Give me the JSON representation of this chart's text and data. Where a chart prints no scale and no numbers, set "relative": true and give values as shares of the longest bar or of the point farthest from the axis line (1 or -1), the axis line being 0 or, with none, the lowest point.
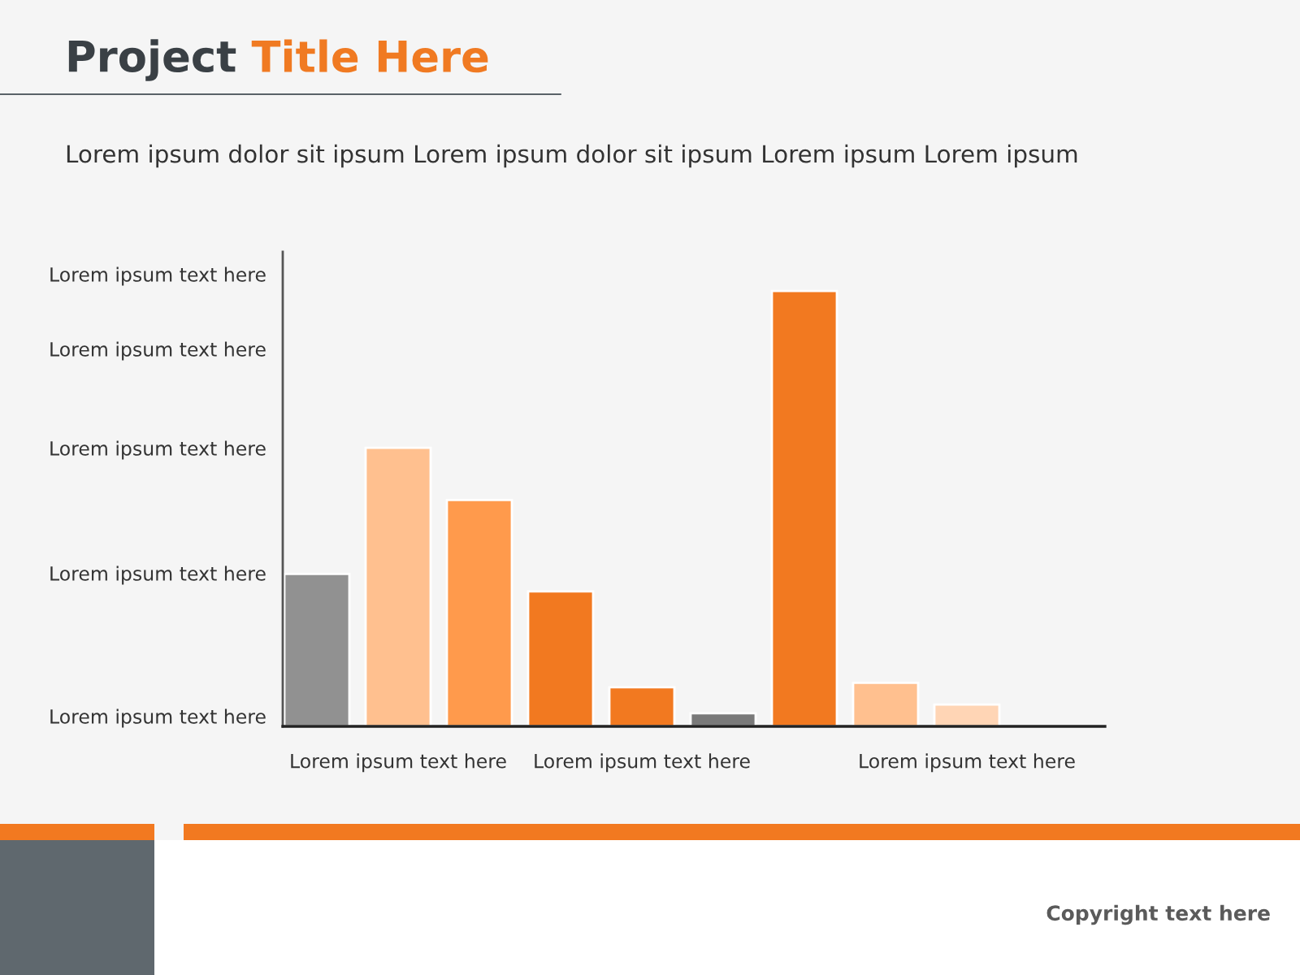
{
  "chart_data": {
    "type": "bar",
    "title": "Project Title Here",
    "subtitle": "Lorem ipsum dolor sit ipsum Lorem ipsum dolor sit ipsum Lorem ipsum Lorem ipsum",
    "categories": [
      null,
      "Lorem ipsum text here",
      null,
      null,
      "Lorem ipsum text here",
      null,
      null,
      null,
      "Lorem ipsum text here"
    ],
    "values": [
      0.35,
      0.64,
      0.52,
      0.31,
      0.09,
      0.03,
      1,
      0.1,
      0.05
    ],
    "colors": [
      "#919191",
      "#ffc08f",
      "#ff9a4c",
      "#f27920",
      "#f27920",
      "#7a7a7a",
      "#f27920",
      "#ffc08f",
      "#ffd5b5"
    ],
    "relative": true,
    "annotations": [
      "Lorem ipsum text here",
      "Lorem ipsum text here",
      "Lorem ipsum text here",
      "Lorem ipsum text here",
      "Lorem ipsum text here",
      "Copyright text here"
    ]
  }
}
